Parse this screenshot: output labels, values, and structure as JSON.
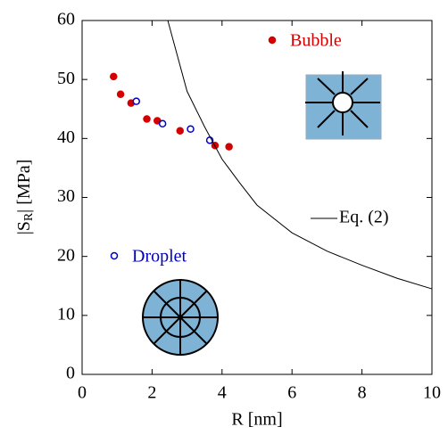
{
  "chart_data": {
    "type": "scatter",
    "xlabel": "R [nm]",
    "ylabel": {
      "text": "|S",
      "subscript": "R",
      "suffix": "| [MPa]"
    },
    "xlim": [
      0,
      10
    ],
    "ylim": [
      0,
      60
    ],
    "xticks": [
      0,
      2,
      4,
      6,
      8,
      10
    ],
    "yticks": [
      0,
      10,
      20,
      30,
      40,
      50,
      60
    ],
    "series": [
      {
        "name": "Bubble",
        "color": "#d40000",
        "marker": "filled",
        "x": [
          0.9,
          1.1,
          1.4,
          1.85,
          2.15,
          2.8,
          3.8,
          4.2
        ],
        "values": [
          50.5,
          47.5,
          46,
          43.3,
          43,
          41.3,
          38.8,
          38.6
        ]
      },
      {
        "name": "Droplet",
        "color": "#0000c0",
        "marker": "open",
        "x": [
          1.55,
          2.3,
          3.1,
          3.65
        ],
        "values": [
          46.3,
          42.5,
          41.6,
          39.7
        ]
      },
      {
        "name": "Eq. (2)",
        "color": "#000000",
        "marker": "line",
        "x": [
          2.45,
          3,
          3.5,
          4,
          4.5,
          5,
          6,
          7,
          8,
          9,
          10
        ],
        "values": [
          60,
          48,
          42,
          36.5,
          32.5,
          28.7,
          24,
          20.9,
          18.5,
          16.3,
          14.5
        ]
      }
    ]
  }
}
